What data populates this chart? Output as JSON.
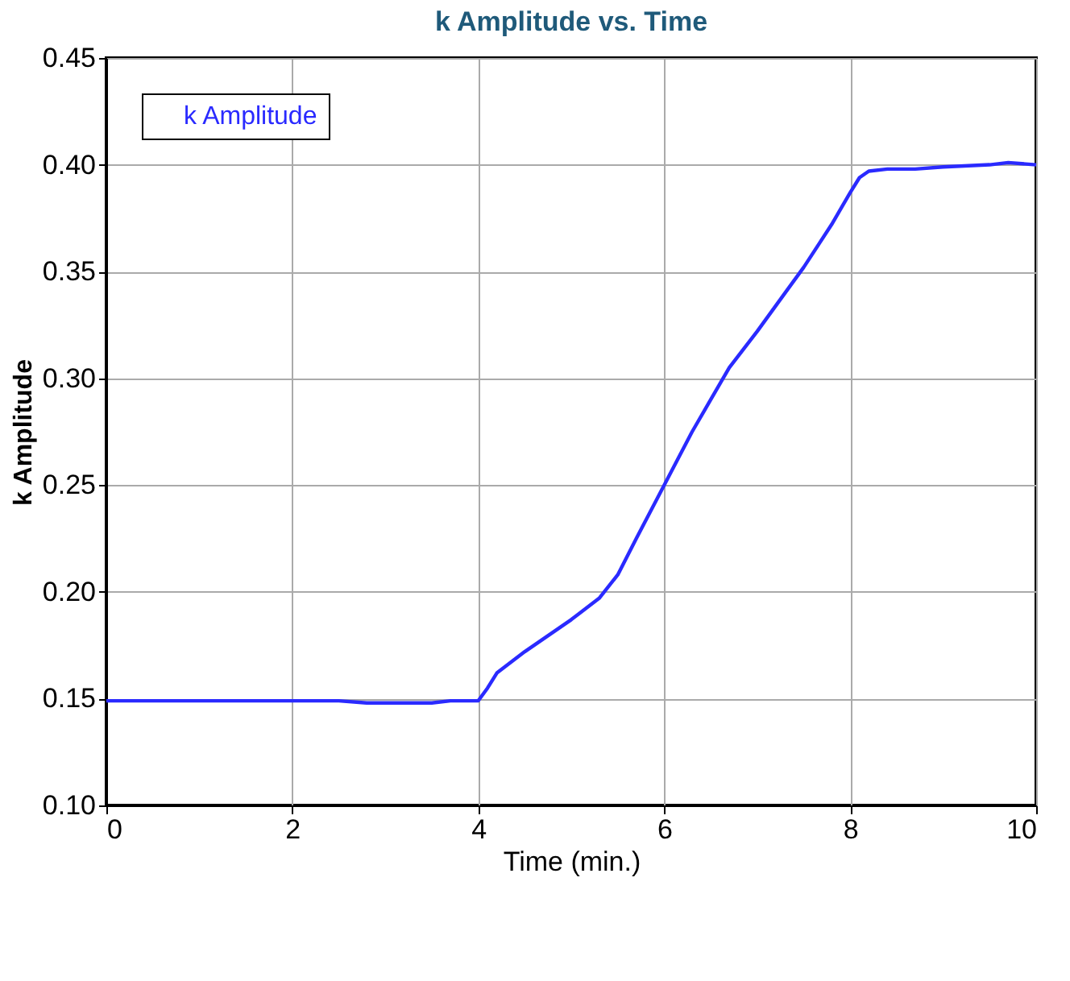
{
  "chart_data": {
    "type": "line",
    "title": "k Amplitude vs. Time",
    "xlabel": "Time (min.)",
    "ylabel": "k Amplitude",
    "x": [
      0,
      0.5,
      1,
      1.5,
      2,
      2.5,
      2.8,
      3.2,
      3.5,
      3.7,
      4.0,
      4.1,
      4.2,
      4.5,
      5.0,
      5.3,
      5.5,
      5.7,
      6.0,
      6.3,
      6.5,
      6.7,
      7.0,
      7.3,
      7.5,
      7.8,
      8.0,
      8.1,
      8.2,
      8.4,
      8.7,
      9.0,
      9.5,
      9.7,
      10
    ],
    "series": [
      {
        "name": "k Amplitude",
        "color": "#2a2aff",
        "values": [
          0.149,
          0.149,
          0.149,
          0.149,
          0.149,
          0.149,
          0.148,
          0.148,
          0.148,
          0.149,
          0.149,
          0.155,
          0.162,
          0.172,
          0.187,
          0.197,
          0.208,
          0.225,
          0.25,
          0.275,
          0.29,
          0.305,
          0.322,
          0.34,
          0.352,
          0.372,
          0.387,
          0.394,
          0.397,
          0.398,
          0.398,
          0.399,
          0.4,
          0.401,
          0.4
        ]
      }
    ],
    "xlim": [
      0,
      10
    ],
    "xticks": [
      0,
      2,
      4,
      6,
      8,
      10
    ],
    "ylim": [
      0.1,
      0.45
    ],
    "yticks": [
      {
        "value": 0.1,
        "label": "0.10"
      },
      {
        "value": 0.15,
        "label": "0.15"
      },
      {
        "value": 0.2,
        "label": "0.20"
      },
      {
        "value": 0.25,
        "label": "0.25"
      },
      {
        "value": 0.3,
        "label": "0.30"
      },
      {
        "value": 0.35,
        "label": "0.35"
      },
      {
        "value": 0.4,
        "label": "0.40"
      },
      {
        "value": 0.45,
        "label": "0.45"
      }
    ],
    "grid": true,
    "legend": "top left",
    "marker": "none",
    "line_style": "solid"
  }
}
